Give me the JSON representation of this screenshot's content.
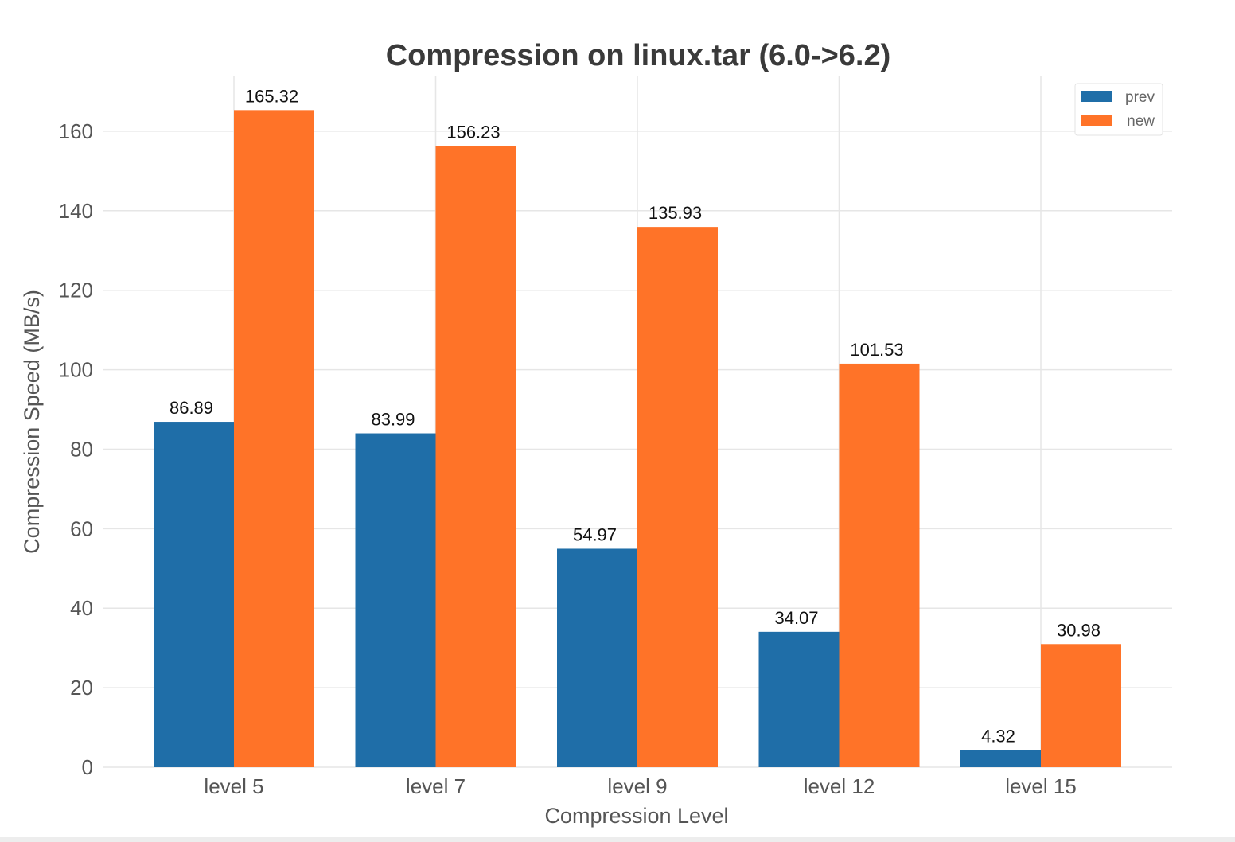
{
  "chart_data": {
    "type": "bar",
    "title": "Compression on linux.tar (6.0->6.2)",
    "xlabel": "Compression Level",
    "ylabel": "Compression Speed (MB/s)",
    "categories": [
      "level 5",
      "level 7",
      "level 9",
      "level 12",
      "level 15"
    ],
    "series": [
      {
        "name": "prev",
        "color": "#1f6ea8",
        "values": [
          86.89,
          83.99,
          54.97,
          34.07,
          4.32
        ]
      },
      {
        "name": "new",
        "color": "#ff7328",
        "values": [
          165.32,
          156.23,
          135.93,
          101.53,
          30.98
        ]
      }
    ],
    "ylim": [
      0,
      174
    ],
    "yticks": [
      0,
      20,
      40,
      60,
      80,
      100,
      120,
      140,
      160
    ],
    "grid": true,
    "legend": "top-right"
  }
}
